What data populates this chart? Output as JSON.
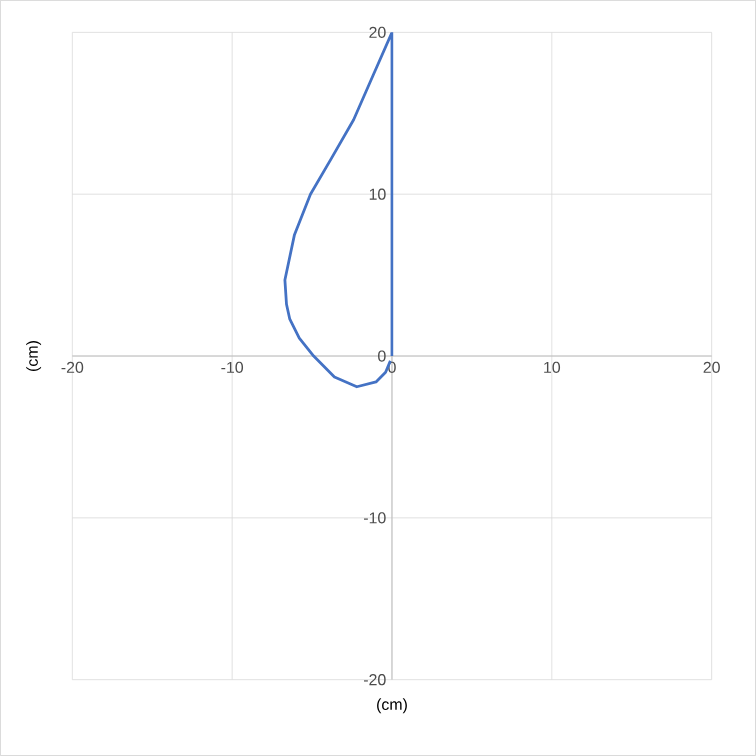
{
  "chart_data": {
    "type": "line",
    "xlabel": "(cm)",
    "ylabel": "(cm)",
    "series": [
      {
        "color": "#4472c4",
        "x": [
          0,
          0,
          -1.2,
          -2.4,
          -3.8,
          -5.1,
          -6.1,
          -6.7,
          -6.6,
          -6.4,
          -5.8,
          -4.9,
          -3.6,
          -2.2,
          -1,
          -0.4,
          -0.1
        ],
        "values": [
          0,
          20,
          17.3,
          14.6,
          12.2,
          10,
          7.5,
          4.7,
          3.2,
          2.3,
          1.1,
          0,
          -1.3,
          -1.9,
          -1.6,
          -1,
          -0.3
        ]
      }
    ],
    "xlim": [
      -20,
      20
    ],
    "ylim": [
      -20,
      20
    ],
    "xticks": [
      -20,
      -10,
      0,
      10,
      20
    ],
    "yticks": [
      -20,
      -10,
      0,
      10,
      20
    ],
    "grid": true,
    "marker": "none",
    "line_style": "solid"
  }
}
